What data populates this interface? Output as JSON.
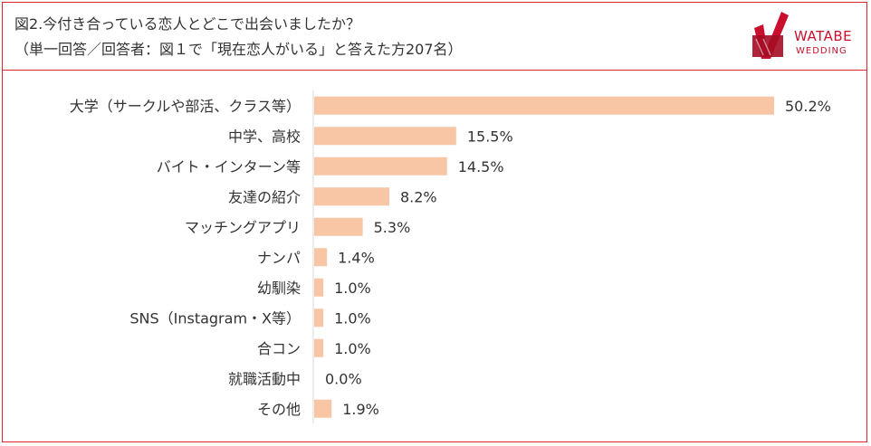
{
  "header": {
    "title_line1": "図2.今付き合っている恋人とどこで出会いましたか？",
    "title_line2": "（単一回答／回答者：図１で「現在恋人がいる」と答えた方207名）"
  },
  "logo": {
    "word": "WATABE",
    "sub": "WEDDING",
    "color": "#c8102e"
  },
  "colors": {
    "frame": "#e0242c",
    "bar": "#f8c6a4",
    "axis": "#d9d9d9"
  },
  "chart_data": {
    "type": "bar",
    "orientation": "horizontal",
    "categories": [
      "大学（サークルや部活、クラス等）",
      "中学、高校",
      "バイト・インターン等",
      "友達の紹介",
      "マッチングアプリ",
      "ナンパ",
      "幼馴染",
      "SNS（Instagram・X等）",
      "合コン",
      "就職活動中",
      "その他"
    ],
    "values": [
      50.2,
      15.5,
      14.5,
      8.2,
      5.3,
      1.4,
      1.0,
      1.0,
      1.0,
      0.0,
      1.9
    ],
    "value_labels": [
      "50.2%",
      "15.5%",
      "14.5%",
      "8.2%",
      "5.3%",
      "1.4%",
      "1.0%",
      "1.0%",
      "1.0%",
      "0.0%",
      "1.9%"
    ],
    "xlim": [
      0,
      50.2
    ],
    "grid": false,
    "legend": "none"
  }
}
